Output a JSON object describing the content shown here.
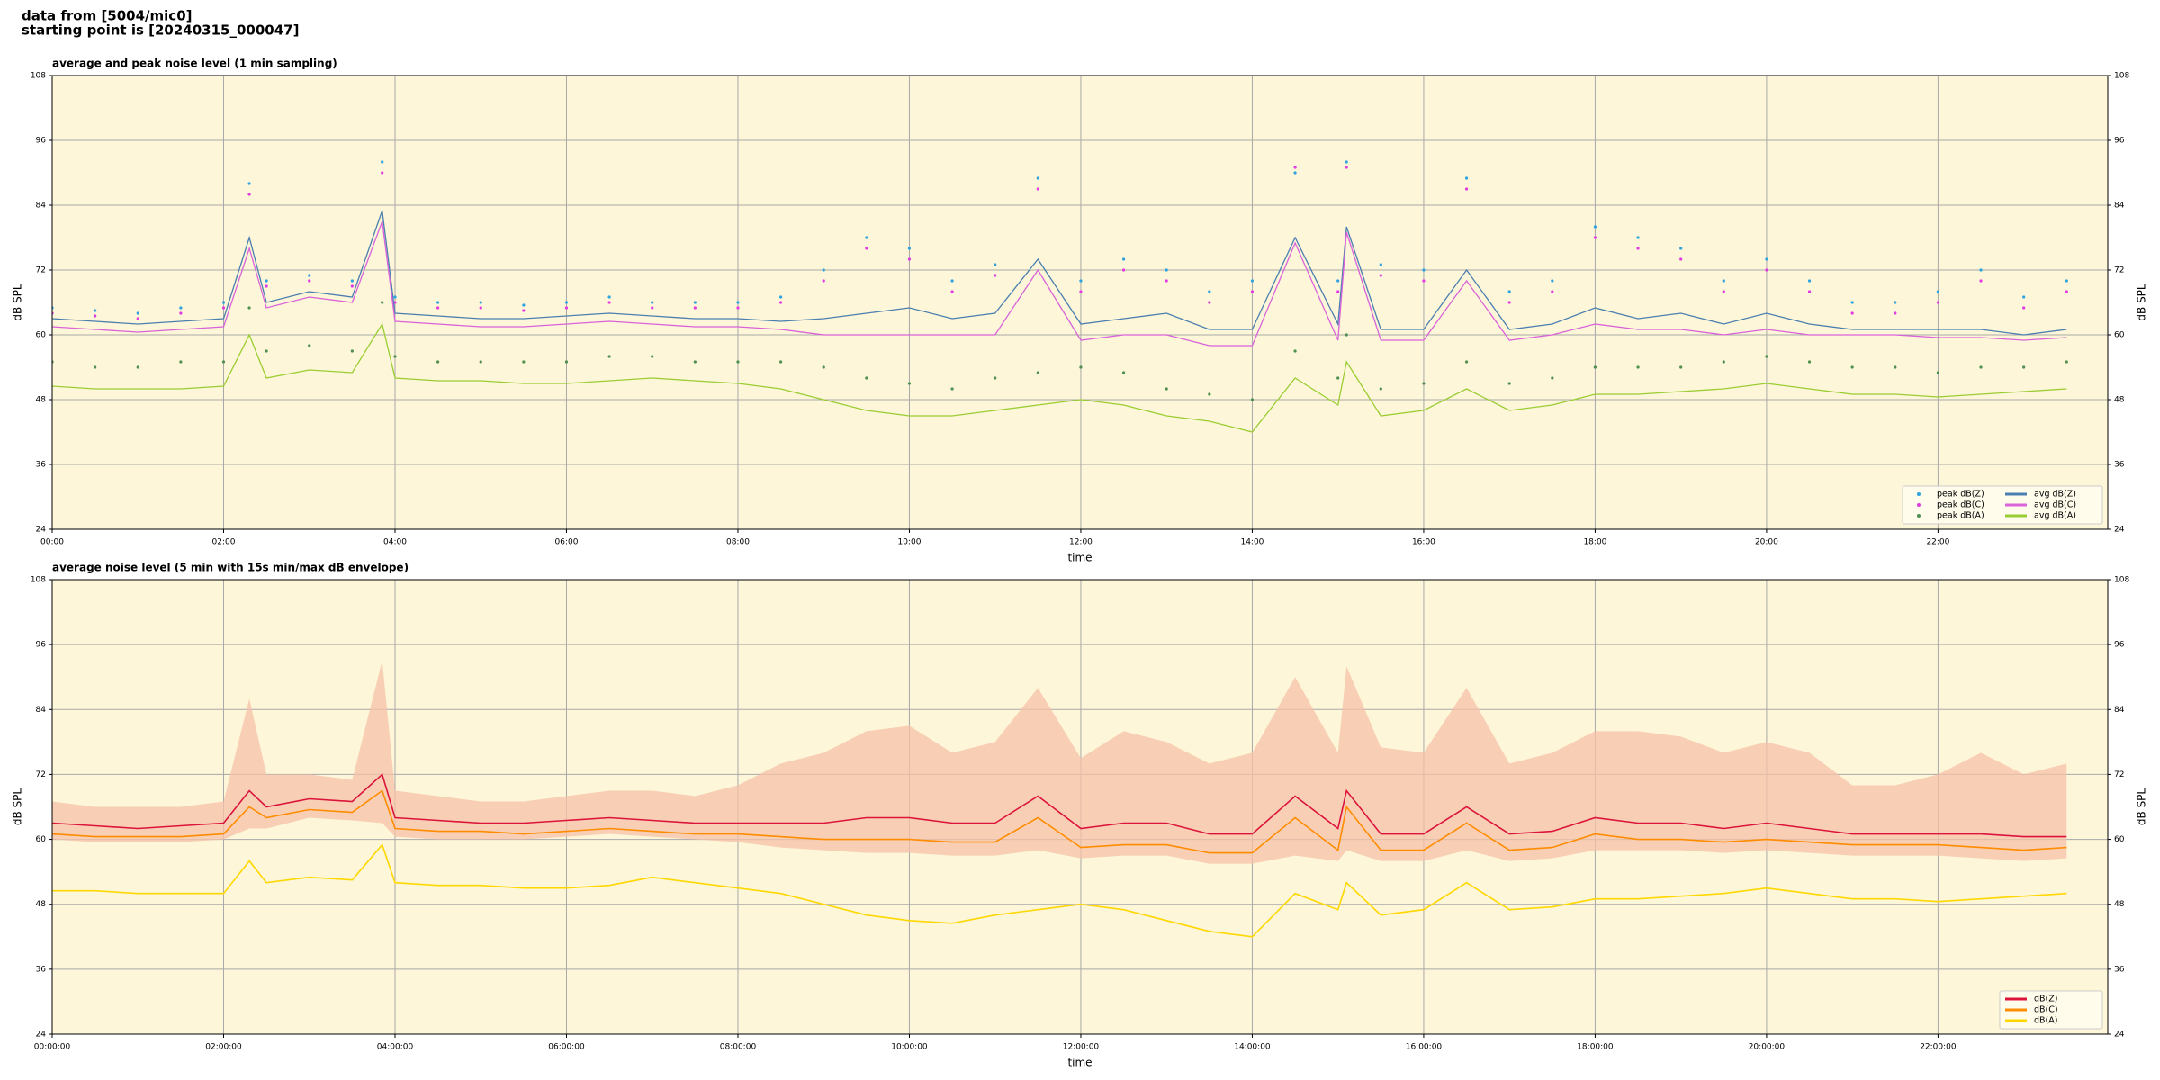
{
  "header": {
    "lines": [
      "data from [5004/mic0]",
      "starting point is [20240315_000047]"
    ]
  },
  "chart_data": [
    {
      "type": "line",
      "title": "average and peak noise level (1 min sampling)",
      "xlabel": "time",
      "ylabel": "dB SPL",
      "background": "#fdf6d8",
      "grid": true,
      "legend": "lower right",
      "legend_columns": 2,
      "xlim": [
        0,
        23.98
      ],
      "ylim": [
        24,
        108
      ],
      "yticks": [
        24,
        36,
        48,
        60,
        72,
        84,
        96,
        108
      ],
      "xticks": [
        {
          "value": 0,
          "label": "00:00"
        },
        {
          "value": 2,
          "label": "02:00"
        },
        {
          "value": 4,
          "label": "04:00"
        },
        {
          "value": 6,
          "label": "06:00"
        },
        {
          "value": 8,
          "label": "08:00"
        },
        {
          "value": 10,
          "label": "10:00"
        },
        {
          "value": 12,
          "label": "12:00"
        },
        {
          "value": 14,
          "label": "14:00"
        },
        {
          "value": 16,
          "label": "16:00"
        },
        {
          "value": 18,
          "label": "18:00"
        },
        {
          "value": 20,
          "label": "20:00"
        },
        {
          "value": 22,
          "label": "22:00"
        }
      ],
      "x": [
        0,
        0.5,
        1,
        1.5,
        2,
        2.3,
        2.5,
        3,
        3.5,
        3.85,
        4,
        4.5,
        5,
        5.5,
        6,
        6.5,
        7,
        7.5,
        8,
        8.5,
        9,
        9.5,
        10,
        10.5,
        11,
        11.5,
        12,
        12.5,
        13,
        13.5,
        14,
        14.5,
        15,
        15.1,
        15.5,
        16,
        16.5,
        17,
        17.5,
        18,
        18.5,
        19,
        19.5,
        20,
        20.5,
        21,
        21.5,
        22,
        22.5,
        23,
        23.5
      ],
      "series": [
        {
          "name": "peak dB(Z)",
          "kind": "scatter",
          "color": "#2ea3e0",
          "values": [
            65,
            64.5,
            64,
            65,
            66,
            88,
            70,
            71,
            70,
            92,
            67,
            66,
            66,
            65.5,
            66,
            67,
            66,
            66,
            66,
            67,
            72,
            78,
            76,
            70,
            73,
            89,
            70,
            74,
            72,
            68,
            70,
            90,
            70,
            92,
            73,
            72,
            89,
            68,
            70,
            80,
            78,
            76,
            70,
            74,
            70,
            66,
            66,
            68,
            72,
            67,
            70
          ]
        },
        {
          "name": "peak dB(C)",
          "kind": "scatter",
          "color": "#e23be2",
          "values": [
            64,
            63.5,
            63,
            64,
            65,
            86,
            69,
            70,
            69,
            90,
            66,
            65,
            65,
            64.5,
            65,
            66,
            65,
            65,
            65,
            66,
            70,
            76,
            74,
            68,
            71,
            87,
            68,
            72,
            70,
            66,
            68,
            91,
            68,
            91,
            71,
            70,
            87,
            66,
            68,
            78,
            76,
            74,
            68,
            72,
            68,
            64,
            64,
            66,
            70,
            65,
            68
          ]
        },
        {
          "name": "peak dB(A)",
          "kind": "scatter",
          "color": "#4f8f4f",
          "values": [
            55,
            54,
            54,
            55,
            55,
            65,
            57,
            58,
            57,
            66,
            56,
            55,
            55,
            55,
            55,
            56,
            56,
            55,
            55,
            55,
            54,
            52,
            51,
            50,
            52,
            53,
            54,
            53,
            50,
            49,
            48,
            57,
            52,
            60,
            50,
            51,
            55,
            51,
            52,
            54,
            54,
            54,
            55,
            56,
            55,
            54,
            54,
            53,
            54,
            54,
            55
          ]
        },
        {
          "name": "avg dB(Z)",
          "kind": "line",
          "color": "#4a7fb0",
          "values": [
            63,
            62.5,
            62,
            62.5,
            63,
            78,
            66,
            68,
            67,
            83,
            64,
            63.5,
            63,
            63,
            63.5,
            64,
            63.5,
            63,
            63,
            62.5,
            63,
            64,
            65,
            63,
            64,
            74,
            62,
            63,
            64,
            61,
            61,
            78,
            62,
            80,
            61,
            61,
            72,
            61,
            62,
            65,
            63,
            64,
            62,
            64,
            62,
            61,
            61,
            61,
            61,
            60,
            61
          ]
        },
        {
          "name": "avg dB(C)",
          "kind": "line",
          "color": "#da62da",
          "values": [
            61.5,
            61,
            60.5,
            61,
            61.5,
            76,
            65,
            67,
            66,
            81,
            62.5,
            62,
            61.5,
            61.5,
            62,
            62.5,
            62,
            61.5,
            61.5,
            61,
            60,
            60,
            60,
            60,
            60,
            72,
            59,
            60,
            60,
            58,
            58,
            77,
            59,
            79,
            59,
            59,
            70,
            59,
            60,
            62,
            61,
            61,
            60,
            61,
            60,
            60,
            60,
            59.5,
            59.5,
            59,
            59.5
          ]
        },
        {
          "name": "avg dB(A)",
          "kind": "line",
          "color": "#9acd32",
          "values": [
            50.5,
            50,
            50,
            50,
            50.5,
            60,
            52,
            53.5,
            53,
            62,
            52,
            51.5,
            51.5,
            51,
            51,
            51.5,
            52,
            51.5,
            51,
            50,
            48,
            46,
            45,
            45,
            46,
            47,
            48,
            47,
            45,
            44,
            42,
            52,
            47,
            55,
            45,
            46,
            50,
            46,
            47,
            49,
            49,
            49.5,
            50,
            51,
            50,
            49,
            49,
            48.5,
            49,
            49.5,
            50
          ]
        }
      ]
    },
    {
      "type": "line",
      "title": "average noise level (5 min with 15s min/max dB envelope)",
      "xlabel": "time",
      "ylabel": "dB SPL",
      "background": "#fdf6d8",
      "grid": true,
      "legend": "lower right",
      "legend_columns": 1,
      "xlim": [
        0,
        23.98
      ],
      "ylim": [
        24,
        108
      ],
      "yticks": [
        24,
        36,
        48,
        60,
        72,
        84,
        96,
        108
      ],
      "xticks": [
        {
          "value": 0,
          "label": "00:00:00"
        },
        {
          "value": 2,
          "label": "02:00:00"
        },
        {
          "value": 4,
          "label": "04:00:00"
        },
        {
          "value": 6,
          "label": "06:00:00"
        },
        {
          "value": 8,
          "label": "08:00:00"
        },
        {
          "value": 10,
          "label": "10:00:00"
        },
        {
          "value": 12,
          "label": "12:00:00"
        },
        {
          "value": 14,
          "label": "14:00:00"
        },
        {
          "value": 16,
          "label": "16:00:00"
        },
        {
          "value": 18,
          "label": "18:00:00"
        },
        {
          "value": 20,
          "label": "20:00:00"
        },
        {
          "value": 22,
          "label": "22:00:00"
        }
      ],
      "x": [
        0,
        0.5,
        1,
        1.5,
        2,
        2.3,
        2.5,
        3,
        3.5,
        3.85,
        4,
        4.5,
        5,
        5.5,
        6,
        6.5,
        7,
        7.5,
        8,
        8.5,
        9,
        9.5,
        10,
        10.5,
        11,
        11.5,
        12,
        12.5,
        13,
        13.5,
        14,
        14.5,
        15,
        15.1,
        15.5,
        16,
        16.5,
        17,
        17.5,
        18,
        18.5,
        19,
        19.5,
        20,
        20.5,
        21,
        21.5,
        22,
        22.5,
        23,
        23.5
      ],
      "envelope": {
        "color": "#f6c2a8",
        "min": [
          60,
          59.5,
          59.5,
          59.5,
          60,
          62,
          62,
          64,
          63.5,
          63,
          60.5,
          60,
          60,
          60,
          60.5,
          61,
          60.5,
          60,
          59.5,
          58.5,
          58,
          57.5,
          57.5,
          57,
          57,
          58,
          56.5,
          57,
          57,
          55.5,
          55.5,
          57,
          56,
          58,
          56,
          56,
          58,
          56,
          56.5,
          58,
          58,
          58,
          57.5,
          58,
          57.5,
          57,
          57,
          57,
          56.5,
          56,
          56.5
        ],
        "max": [
          67,
          66,
          66,
          66,
          67,
          86,
          72,
          72,
          71,
          93,
          69,
          68,
          67,
          67,
          68,
          69,
          69,
          68,
          70,
          74,
          76,
          80,
          81,
          76,
          78,
          88,
          75,
          80,
          78,
          74,
          76,
          90,
          76,
          92,
          77,
          76,
          88,
          74,
          76,
          80,
          80,
          79,
          76,
          78,
          76,
          70,
          70,
          72,
          76,
          72,
          74
        ]
      },
      "series": [
        {
          "name": "dB(Z)",
          "kind": "line",
          "color": "#dc143c",
          "values": [
            63,
            62.5,
            62,
            62.5,
            63,
            69,
            66,
            67.5,
            67,
            72,
            64,
            63.5,
            63,
            63,
            63.5,
            64,
            63.5,
            63,
            63,
            63,
            63,
            64,
            64,
            63,
            63,
            68,
            62,
            63,
            63,
            61,
            61,
            68,
            62,
            69,
            61,
            61,
            66,
            61,
            61.5,
            64,
            63,
            63,
            62,
            63,
            62,
            61,
            61,
            61,
            61,
            60.5,
            60.5
          ]
        },
        {
          "name": "dB(C)",
          "kind": "line",
          "color": "#ff8c00",
          "values": [
            61,
            60.5,
            60.5,
            60.5,
            61,
            66,
            64,
            65.5,
            65,
            69,
            62,
            61.5,
            61.5,
            61,
            61.5,
            62,
            61.5,
            61,
            61,
            60.5,
            60,
            60,
            60,
            59.5,
            59.5,
            64,
            58.5,
            59,
            59,
            57.5,
            57.5,
            64,
            58,
            66,
            58,
            58,
            63,
            58,
            58.5,
            61,
            60,
            60,
            59.5,
            60,
            59.5,
            59,
            59,
            59,
            58.5,
            58,
            58.5
          ]
        },
        {
          "name": "dB(A)",
          "kind": "line",
          "color": "#ffd700",
          "values": [
            50.5,
            50.5,
            50,
            50,
            50,
            56,
            52,
            53,
            52.5,
            59,
            52,
            51.5,
            51.5,
            51,
            51,
            51.5,
            53,
            52,
            51,
            50,
            48,
            46,
            45,
            44.5,
            46,
            47,
            48,
            47,
            45,
            43,
            42,
            50,
            47,
            52,
            46,
            47,
            52,
            47,
            47.5,
            49,
            49,
            49.5,
            50,
            51,
            50,
            49,
            49,
            48.5,
            49,
            49.5,
            50
          ]
        }
      ]
    }
  ]
}
